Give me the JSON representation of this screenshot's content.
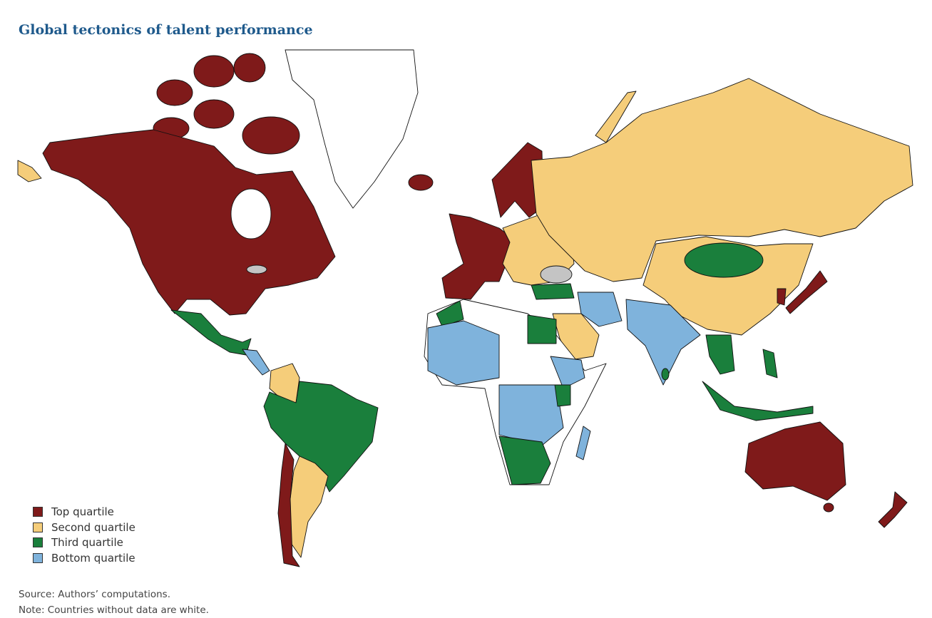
{
  "title": "Global tectonics of talent performance",
  "legend": [
    {
      "label": "Top quartile",
      "color": "#7f1a1a"
    },
    {
      "label": "Second quartile",
      "color": "#f5cd7a"
    },
    {
      "label": "Third quartile",
      "color": "#1a7f3c"
    },
    {
      "label": "Bottom quartile",
      "color": "#7fb3dc"
    }
  ],
  "no_data_color": "#ffffff",
  "notes": {
    "source": "Source: Authors’ computations.",
    "note": "Note: Countries without data are white."
  }
}
